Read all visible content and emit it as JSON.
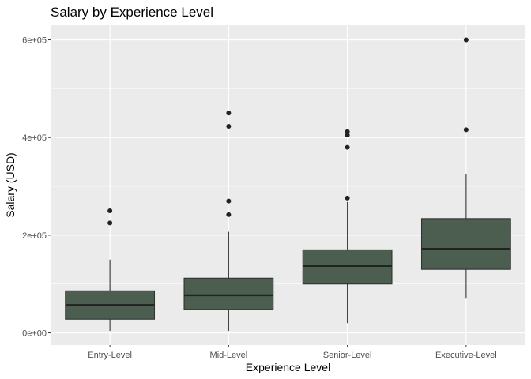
{
  "chart_data": {
    "type": "box",
    "title": "Salary by Experience Level",
    "xlabel": "Experience Level",
    "ylabel": "Salary (USD)",
    "ylim": [
      -25000,
      630000
    ],
    "y_ticks": [
      0,
      200000,
      400000,
      600000
    ],
    "y_tick_labels": [
      "0e+00",
      "2e+05",
      "4e+05",
      "6e+05"
    ],
    "grid": true,
    "panel_color": "#EBEBEB",
    "box_fill": "#4B5E50",
    "categories": [
      "Entry-Level",
      "Mid-Level",
      "Senior-Level",
      "Executive-Level"
    ],
    "boxes": [
      {
        "category": "Entry-Level",
        "whisker_low": 4000,
        "q1": 28000,
        "median": 57000,
        "q3": 86000,
        "whisker_high": 150000,
        "outliers": [
          250000,
          225000
        ]
      },
      {
        "category": "Mid-Level",
        "whisker_low": 4000,
        "q1": 48000,
        "median": 77000,
        "q3": 112000,
        "whisker_high": 207000,
        "outliers": [
          450000,
          423000,
          270000,
          242000
        ]
      },
      {
        "category": "Senior-Level",
        "whisker_low": 20000,
        "q1": 100000,
        "median": 137000,
        "q3": 170000,
        "whisker_high": 268000,
        "outliers": [
          412000,
          405000,
          380000,
          276000
        ]
      },
      {
        "category": "Executive-Level",
        "whisker_low": 70000,
        "q1": 130000,
        "median": 172000,
        "q3": 234000,
        "whisker_high": 325000,
        "outliers": [
          600000,
          416000
        ]
      }
    ]
  }
}
